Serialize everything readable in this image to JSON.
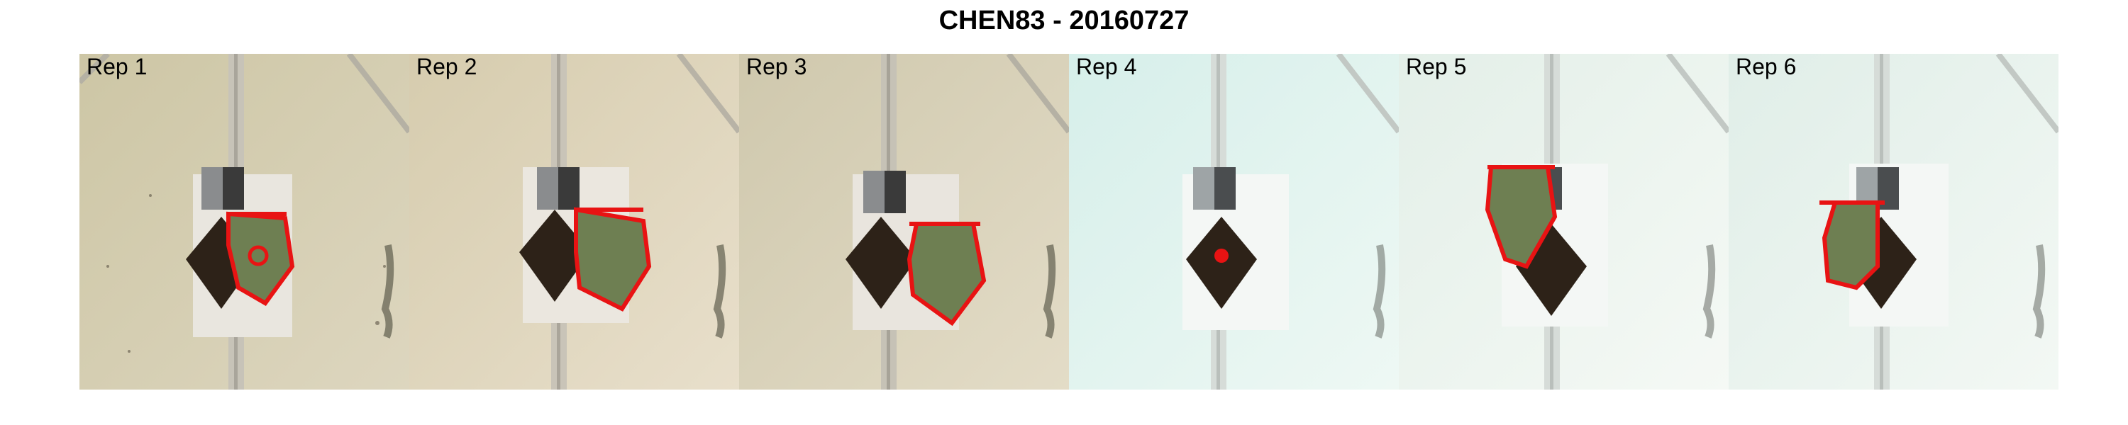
{
  "figure": {
    "title": "CHEN83 - 20160727"
  },
  "panels": [
    {
      "label": "Rep 1",
      "tone": "#cfc7a8",
      "tone_light": "#e4dcc6",
      "plant_visible": true
    },
    {
      "label": "Rep 2",
      "tone": "#d9cfb4",
      "tone_light": "#ede3cf",
      "plant_visible": true
    },
    {
      "label": "Rep 3",
      "tone": "#d2cbb1",
      "tone_light": "#e7e0c9",
      "plant_visible": true
    },
    {
      "label": "Rep 4",
      "tone": "#d9eeea",
      "tone_light": "#eef8f5",
      "plant_visible": false
    },
    {
      "label": "Rep 5",
      "tone": "#e6f0ea",
      "tone_light": "#f4f8f3",
      "plant_visible": true
    },
    {
      "label": "Rep 6",
      "tone": "#e2efe9",
      "tone_light": "#f2f7f3",
      "plant_visible": true
    }
  ],
  "colors": {
    "hull_outline": "#e81313",
    "leaf_outline": "#1b1bd6",
    "leaf_fill": "#6e7f52",
    "soil": "#2d2218",
    "rail": "#c9c6c0"
  }
}
